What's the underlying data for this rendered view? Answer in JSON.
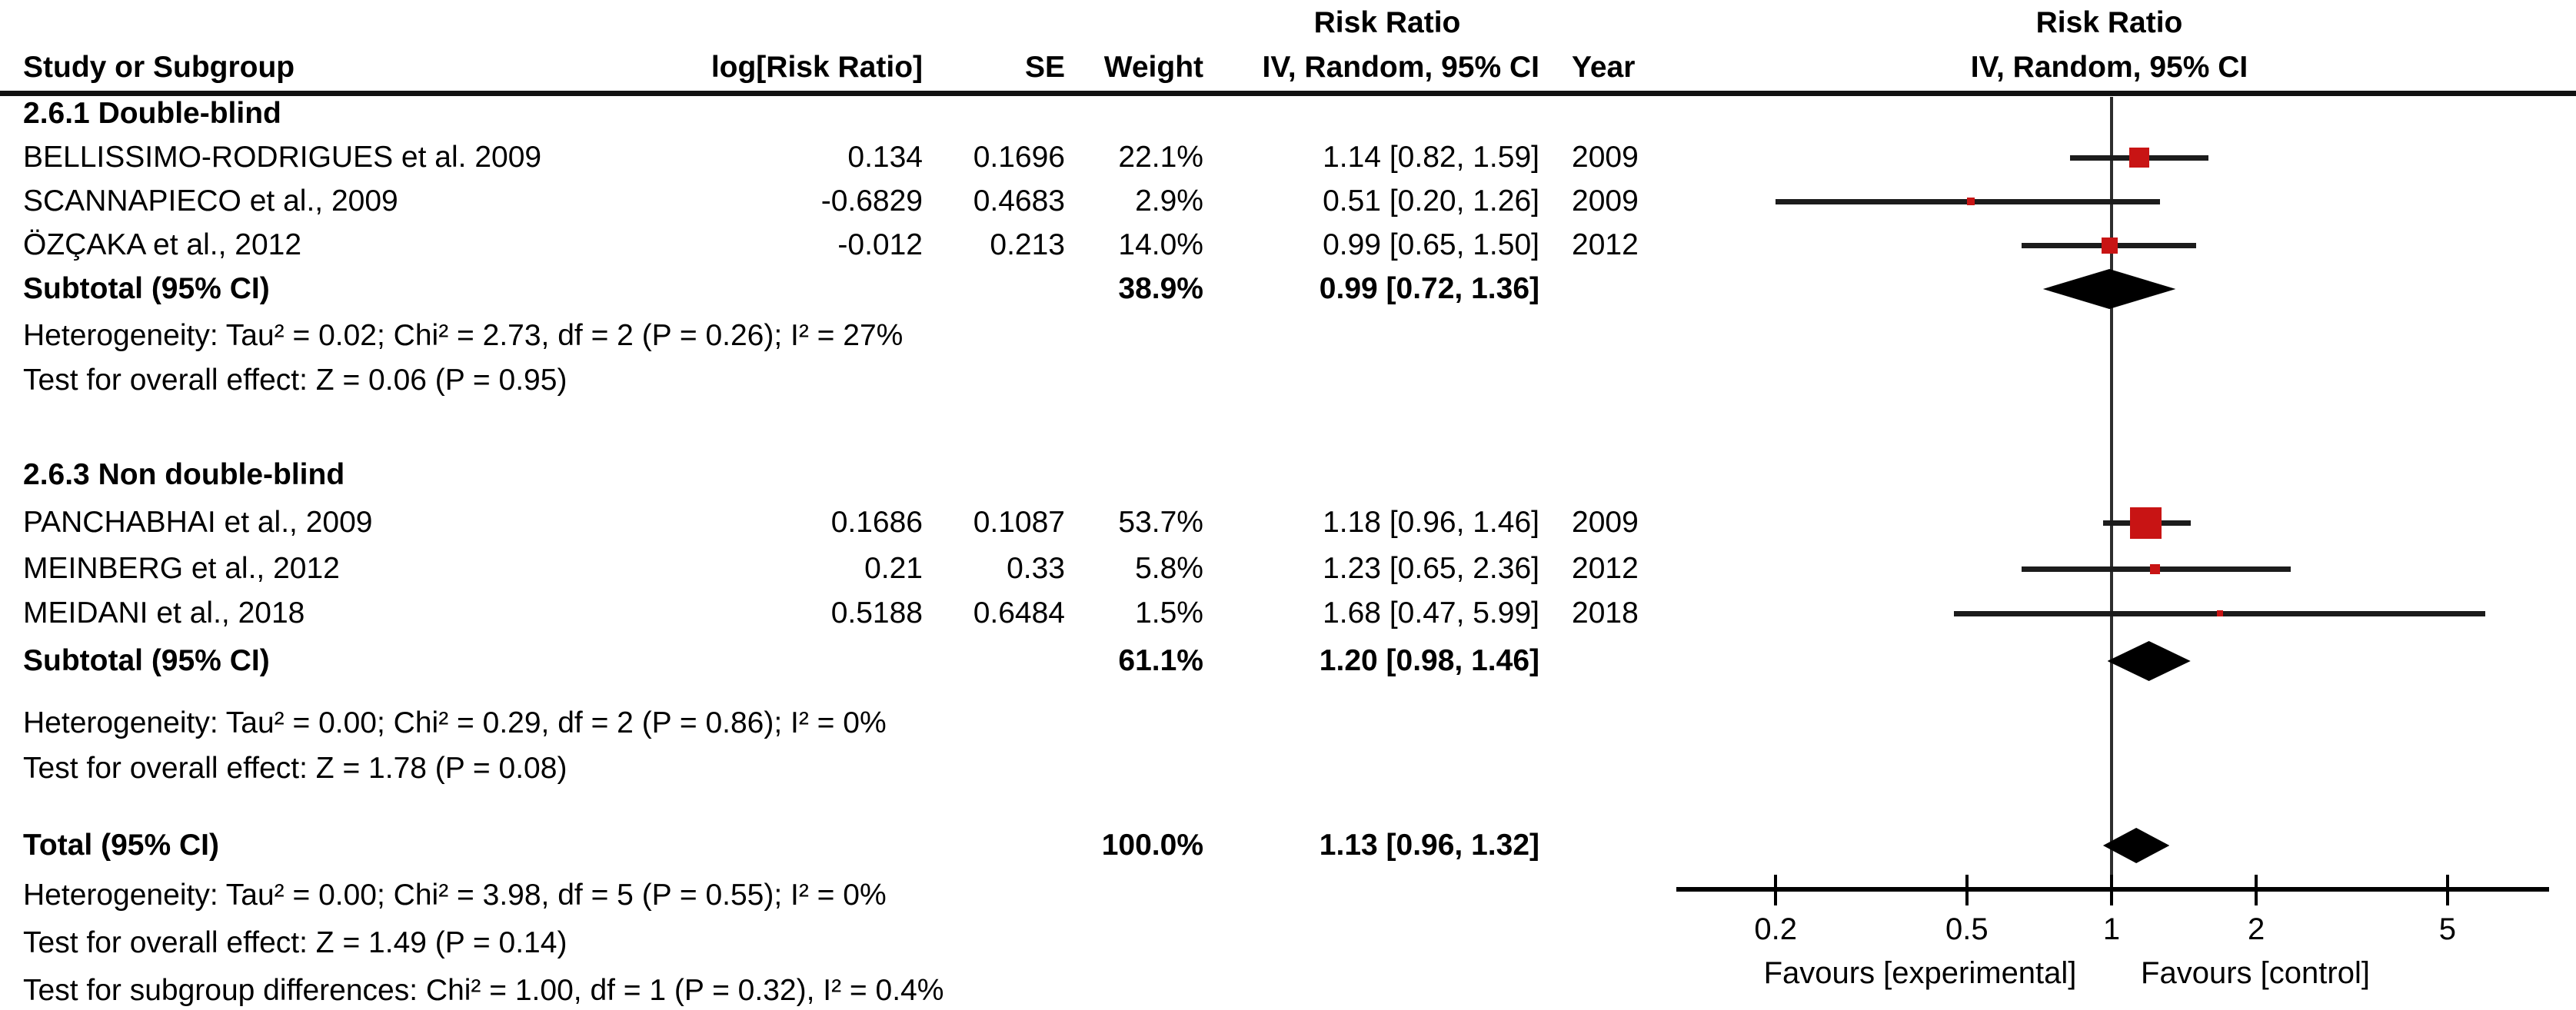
{
  "columns": {
    "study": "Study or Subgroup",
    "log_rr": "log[Risk Ratio]",
    "se": "SE",
    "weight": "Weight",
    "iv_ci": "IV, Random, 95% CI",
    "year": "Year"
  },
  "chart_data": {
    "type": "forest",
    "effect_measure": "Risk Ratio",
    "model": "IV, Random, 95% CI",
    "scale": "log",
    "axis": {
      "ticks": [
        "0.2",
        "0.5",
        "1",
        "2",
        "5"
      ],
      "tick_values": [
        0.2,
        0.5,
        1,
        2,
        5
      ],
      "xmin": 0.125,
      "xmax": 8
    },
    "favours_left": "Favours [experimental]",
    "favours_right": "Favours [control]",
    "groups": [
      {
        "label": "2.6.1 Double-blind",
        "studies": [
          {
            "study": "BELLISSIMO-RODRIGUES et al. 2009",
            "log_rr": "0.134",
            "se": "0.1696",
            "weight": "22.1%",
            "ci_text": "1.14 [0.82, 1.59]",
            "year": "2009",
            "rr": 1.14,
            "lo": 0.82,
            "hi": 1.59,
            "weight_pct": 22.1
          },
          {
            "study": "SCANNAPIECO et al., 2009",
            "log_rr": "-0.6829",
            "se": "0.4683",
            "weight": "2.9%",
            "ci_text": "0.51 [0.20, 1.26]",
            "year": "2009",
            "rr": 0.51,
            "lo": 0.2,
            "hi": 1.26,
            "weight_pct": 2.9
          },
          {
            "study": "ÖZÇAKA et al., 2012",
            "log_rr": "-0.012",
            "se": "0.213",
            "weight": "14.0%",
            "ci_text": "0.99 [0.65, 1.50]",
            "year": "2012",
            "rr": 0.99,
            "lo": 0.65,
            "hi": 1.5,
            "weight_pct": 14.0
          }
        ],
        "subtotal": {
          "label": "Subtotal (95% CI)",
          "weight": "38.9%",
          "ci_text": "0.99 [0.72, 1.36]",
          "rr": 0.99,
          "lo": 0.72,
          "hi": 1.36
        },
        "heterogeneity": "Heterogeneity: Tau² = 0.02; Chi² = 2.73, df = 2 (P = 0.26); I² = 27%",
        "overall_effect": "Test for overall effect: Z = 0.06 (P = 0.95)"
      },
      {
        "label": "2.6.3 Non double-blind",
        "studies": [
          {
            "study": "PANCHABHAI et al., 2009",
            "log_rr": "0.1686",
            "se": "0.1087",
            "weight": "53.7%",
            "ci_text": "1.18 [0.96, 1.46]",
            "year": "2009",
            "rr": 1.18,
            "lo": 0.96,
            "hi": 1.46,
            "weight_pct": 53.7
          },
          {
            "study": "MEINBERG et al., 2012",
            "log_rr": "0.21",
            "se": "0.33",
            "weight": "5.8%",
            "ci_text": "1.23 [0.65, 2.36]",
            "year": "2012",
            "rr": 1.23,
            "lo": 0.65,
            "hi": 2.36,
            "weight_pct": 5.8
          },
          {
            "study": "MEIDANI et al., 2018",
            "log_rr": "0.5188",
            "se": "0.6484",
            "weight": "1.5%",
            "ci_text": "1.68 [0.47, 5.99]",
            "year": "2018",
            "rr": 1.68,
            "lo": 0.47,
            "hi": 5.99,
            "weight_pct": 1.5
          }
        ],
        "subtotal": {
          "label": "Subtotal (95% CI)",
          "weight": "61.1%",
          "ci_text": "1.20 [0.98, 1.46]",
          "rr": 1.2,
          "lo": 0.98,
          "hi": 1.46
        },
        "heterogeneity": "Heterogeneity: Tau² = 0.00; Chi² = 0.29, df = 2 (P = 0.86); I² = 0%",
        "overall_effect": "Test for overall effect: Z = 1.78 (P = 0.08)"
      }
    ],
    "total": {
      "label": "Total (95% CI)",
      "weight": "100.0%",
      "ci_text": "1.13 [0.96, 1.32]",
      "rr": 1.13,
      "lo": 0.96,
      "hi": 1.32
    },
    "total_heterogeneity": "Heterogeneity: Tau² = 0.00; Chi² = 3.98, df = 5 (P = 0.55); I² = 0%",
    "total_overall_effect": "Test for overall effect: Z = 1.49 (P = 0.14)",
    "subgroup_differences": "Test for subgroup differences: Chi² = 1.00, df = 1 (P = 0.32), I² = 0.4%"
  },
  "colors": {
    "marker": "#c81414",
    "diamond": "#000000",
    "ci_line": "#1c1c1c",
    "axis": "#000000"
  }
}
